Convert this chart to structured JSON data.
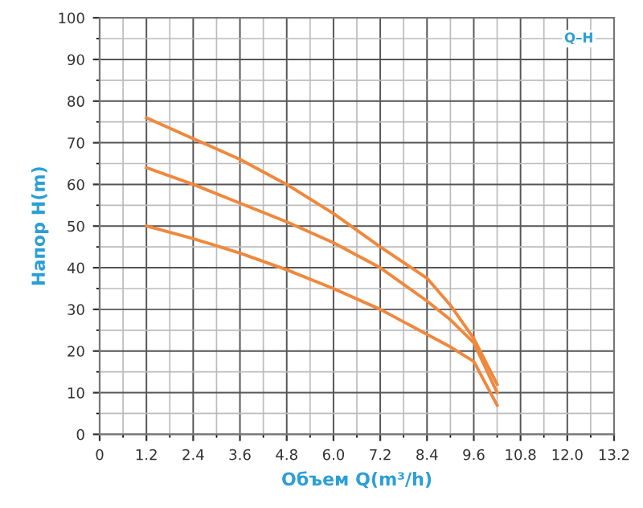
{
  "chart_data": {
    "type": "line",
    "xlabel": "Объем Q(m³/h)",
    "ylabel": "Напор H(m)",
    "annotations": [
      "Q–H"
    ],
    "x": [
      1.2,
      2.4,
      3.6,
      4.8,
      6.0,
      7.2,
      8.4,
      9.0,
      9.6,
      10.2
    ],
    "series": [
      {
        "color": "#f0883c",
        "values": [
          76,
          71,
          66,
          60,
          53,
          45,
          37.5,
          31,
          23,
          12
        ]
      },
      {
        "color": "#f0883c",
        "values": [
          64,
          60,
          55.5,
          51,
          46,
          40,
          32,
          27.5,
          22,
          10
        ]
      },
      {
        "color": "#f0883c",
        "values": [
          50,
          47,
          43.5,
          39.5,
          35,
          30,
          24,
          21,
          17.5,
          7
        ]
      }
    ],
    "xlim": [
      0,
      13.2
    ],
    "xticks": [
      0,
      1.2,
      2.4,
      3.6,
      4.8,
      {
        "value": 6.0,
        "label": "6.0"
      },
      7.2,
      8.4,
      9.6,
      10.8,
      {
        "value": 12.0,
        "label": "12.0"
      },
      13.2
    ],
    "ylim": [
      0,
      100
    ],
    "yticks": [
      0,
      10,
      20,
      30,
      40,
      50,
      60,
      70,
      80,
      90,
      100
    ],
    "grid": true,
    "marker": "none",
    "line_style": "solid",
    "legend": false
  }
}
